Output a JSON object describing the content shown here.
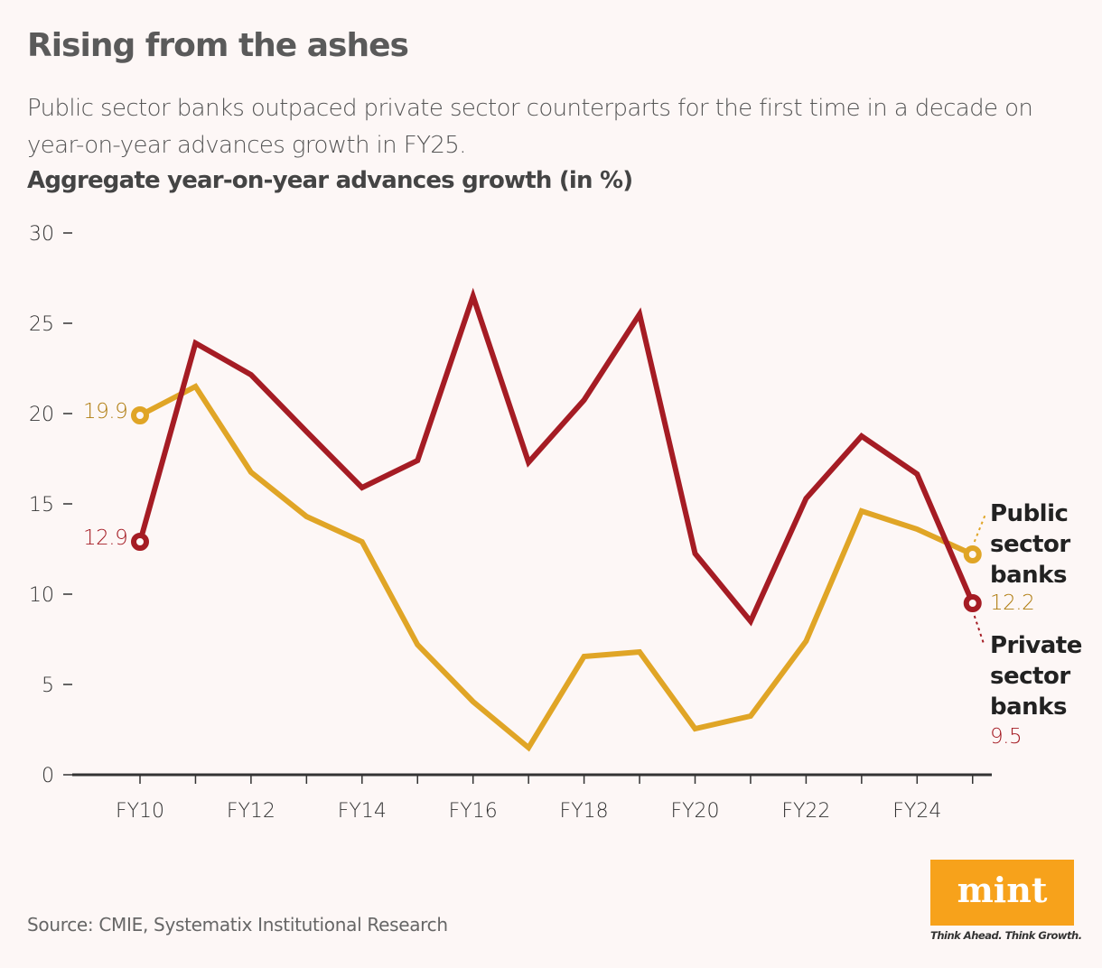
{
  "title": "Rising from the ashes",
  "subtitle": "Public sector banks outpaced private sector counterparts for the first time in a decade on year-on-year advances growth in FY25.",
  "source": "Source: CMIE, Systematix Institutional Research",
  "logo": {
    "text": "mint",
    "tagline": "Think Ahead. Think Growth.",
    "color": "#f7a21b"
  },
  "chart_data": {
    "type": "line",
    "title": "Rising from the ashes",
    "ylabel": "Aggregate year-on-year advances growth (in %)",
    "xlabel": "",
    "x": [
      "FY10",
      "FY11",
      "FY12",
      "FY13",
      "FY14",
      "FY15",
      "FY16",
      "FY17",
      "FY18",
      "FY19",
      "FY20",
      "FY21",
      "FY22",
      "FY23",
      "FY24",
      "FY25"
    ],
    "x_tick_labels": [
      "FY10",
      "FY12",
      "FY14",
      "FY16",
      "FY18",
      "FY20",
      "FY22",
      "FY24"
    ],
    "y_ticks": [
      0,
      5,
      10,
      15,
      20,
      25,
      30
    ],
    "ylim": [
      0,
      30
    ],
    "grid": false,
    "series": [
      {
        "name": "Public sector banks",
        "color": "#e0a526",
        "label_color": "#b07d10",
        "values": [
          19.9,
          21.5,
          16.75,
          14.3,
          12.9,
          7.2,
          4.05,
          1.5,
          6.55,
          6.8,
          2.55,
          3.25,
          7.4,
          14.6,
          13.6,
          12.2
        ],
        "start_label": "19.9",
        "end_label": "12.2"
      },
      {
        "name": "Private sector banks",
        "color": "#a51c24",
        "label_color": "#a51c24",
        "values": [
          12.9,
          23.9,
          22.15,
          19.0,
          15.9,
          17.4,
          26.5,
          17.3,
          20.75,
          25.5,
          12.25,
          8.5,
          15.3,
          18.75,
          16.65,
          9.5
        ],
        "start_label": "12.9",
        "end_label": "9.5"
      }
    ]
  }
}
